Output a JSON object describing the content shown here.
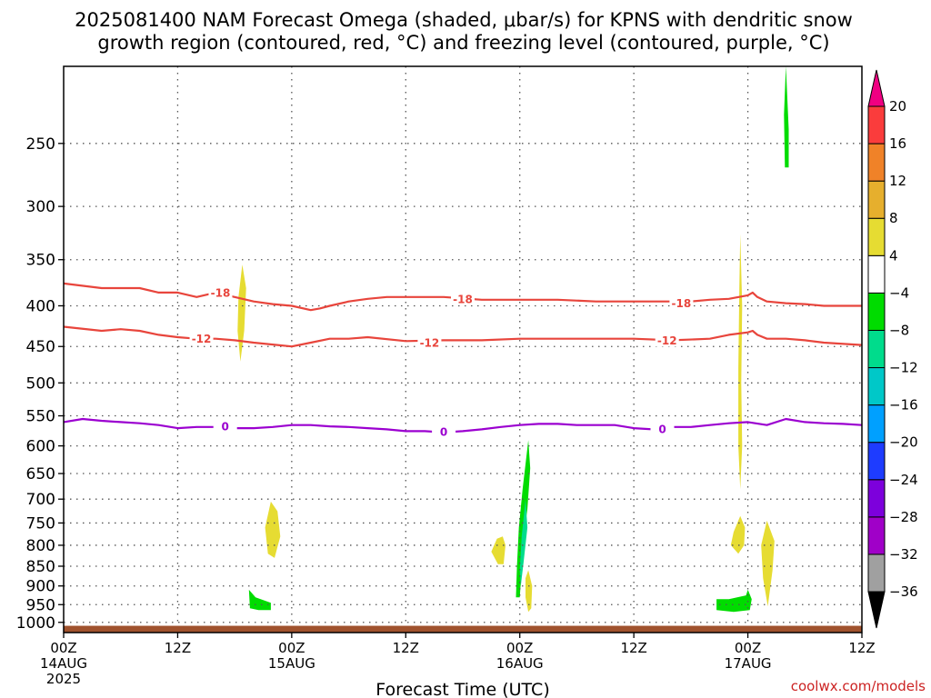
{
  "chart_data": {
    "type": "heatmap",
    "title_lines": [
      "2025081400 NAM Forecast Omega (shaded, μbar/s) for KPNS with dendritic snow",
      "growth region (contoured, red, °C) and freezing level (contoured, purple, °C)"
    ],
    "xlabel": "Forecast Time (UTC)",
    "xlim": [
      0,
      84
    ],
    "x_ticks": [
      {
        "x": 0,
        "lines": [
          "00Z",
          "14AUG",
          "2025"
        ]
      },
      {
        "x": 12,
        "lines": [
          "12Z"
        ]
      },
      {
        "x": 24,
        "lines": [
          "00Z",
          "15AUG"
        ]
      },
      {
        "x": 36,
        "lines": [
          "12Z"
        ]
      },
      {
        "x": 48,
        "lines": [
          "00Z",
          "16AUG"
        ]
      },
      {
        "x": 60,
        "lines": [
          "12Z"
        ]
      },
      {
        "x": 72,
        "lines": [
          "00Z",
          "17AUG"
        ]
      },
      {
        "x": 84,
        "lines": [
          "12Z"
        ]
      }
    ],
    "y_ticks": [
      250,
      300,
      350,
      400,
      450,
      500,
      550,
      600,
      650,
      700,
      750,
      800,
      850,
      900,
      950,
      1000
    ],
    "ylim": [
      1030,
      200
    ],
    "grid": true,
    "ground": {
      "pressure_top": 1010,
      "color": "#a0522d"
    },
    "colorbar": {
      "levels": [
        -36,
        -32,
        -28,
        -24,
        -20,
        -16,
        -12,
        -8,
        -4,
        4,
        8,
        12,
        16,
        20
      ],
      "colors": [
        "#000000",
        "#a0a0a0",
        "#a000c8",
        "#7d00dc",
        "#1e3cff",
        "#00a0ff",
        "#00c8c8",
        "#00dc8c",
        "#00dc00",
        "#ffffff",
        "#e6dc32",
        "#e6af2d",
        "#f08228",
        "#fa3c3c",
        "#f00082"
      ]
    },
    "contours": [
      {
        "name": "-18",
        "color": "#e8453c",
        "x": [
          0,
          4,
          8,
          10,
          12,
          14,
          16,
          18,
          20,
          22,
          24,
          26,
          27,
          28,
          30,
          32,
          34,
          36,
          40,
          44,
          48,
          52,
          56,
          60,
          64,
          66,
          68,
          70,
          72,
          72.5,
          73,
          74,
          76,
          78,
          80,
          84
        ],
        "y": [
          375,
          380,
          380,
          385,
          385,
          390,
          385,
          390,
          395,
          398,
          400,
          405,
          403,
          400,
          395,
          392,
          390,
          390,
          390,
          393,
          393,
          393,
          395,
          395,
          395,
          395,
          393,
          392,
          388,
          385,
          390,
          395,
          397,
          398,
          400,
          400
        ],
        "labels": [
          {
            "x": 16.5,
            "y": 385
          },
          {
            "x": 42,
            "y": 392
          },
          {
            "x": 65,
            "y": 397
          }
        ]
      },
      {
        "name": "-12",
        "color": "#e8453c",
        "x": [
          0,
          4,
          6,
          8,
          10,
          12,
          14,
          16,
          18,
          20,
          24,
          26,
          28,
          30,
          32,
          36,
          40,
          44,
          48,
          52,
          56,
          60,
          64,
          68,
          70,
          72,
          72.5,
          73,
          74,
          76,
          78,
          80,
          84
        ],
        "y": [
          425,
          430,
          428,
          430,
          435,
          438,
          440,
          440,
          442,
          445,
          450,
          445,
          440,
          440,
          438,
          443,
          442,
          442,
          440,
          440,
          440,
          440,
          442,
          440,
          435,
          432,
          430,
          435,
          440,
          440,
          442,
          445,
          448
        ],
        "labels": [
          {
            "x": 14.5,
            "y": 440
          },
          {
            "x": 38.5,
            "y": 445
          },
          {
            "x": 63.5,
            "y": 442
          }
        ]
      },
      {
        "name": "0",
        "color": "#9b00d0",
        "x": [
          0,
          2,
          4,
          6,
          8,
          10,
          12,
          14,
          16,
          18,
          20,
          22,
          24,
          26,
          28,
          30,
          32,
          34,
          36,
          38,
          40,
          42,
          44,
          46,
          48,
          50,
          52,
          54,
          56,
          58,
          60,
          62,
          64,
          66,
          68,
          70,
          72,
          74,
          76,
          78,
          80,
          82,
          84
        ],
        "y": [
          560,
          555,
          558,
          560,
          562,
          565,
          570,
          568,
          568,
          570,
          570,
          568,
          565,
          565,
          567,
          568,
          570,
          572,
          575,
          575,
          577,
          575,
          572,
          568,
          565,
          563,
          563,
          565,
          565,
          565,
          570,
          572,
          568,
          568,
          565,
          562,
          560,
          565,
          555,
          560,
          562,
          563,
          565
        ],
        "labels": [
          {
            "x": 17,
            "y": 567
          },
          {
            "x": 40,
            "y": 576
          },
          {
            "x": 63,
            "y": 571
          }
        ]
      }
    ],
    "shaded_regions": [
      {
        "level": 4,
        "color": "#e6dc32",
        "points": [
          [
            18.8,
            355
          ],
          [
            19.2,
            380
          ],
          [
            19.0,
            430
          ],
          [
            18.6,
            470
          ],
          [
            18.3,
            430
          ],
          [
            18.4,
            390
          ]
        ]
      },
      {
        "level": 4,
        "color": "#e6dc32",
        "points": [
          [
            21.8,
            705
          ],
          [
            22.5,
            725
          ],
          [
            22.8,
            780
          ],
          [
            22.2,
            830
          ],
          [
            21.5,
            820
          ],
          [
            21.2,
            760
          ]
        ]
      },
      {
        "level": -4,
        "color": "#00dc00",
        "points": [
          [
            19.5,
            910
          ],
          [
            20.2,
            930
          ],
          [
            21.8,
            945
          ],
          [
            21.8,
            965
          ],
          [
            20.5,
            965
          ],
          [
            19.6,
            960
          ]
        ]
      },
      {
        "level": 4,
        "color": "#e6dc32",
        "points": [
          [
            45.6,
            785
          ],
          [
            46.2,
            780
          ],
          [
            46.5,
            800
          ],
          [
            46.3,
            845
          ],
          [
            45.7,
            845
          ],
          [
            45.0,
            815
          ]
        ]
      },
      {
        "level": -4,
        "color": "#00dc00",
        "points": [
          [
            48.9,
            590
          ],
          [
            49.1,
            640
          ],
          [
            48.8,
            720
          ],
          [
            48.3,
            800
          ],
          [
            48.1,
            890
          ],
          [
            48.0,
            930
          ],
          [
            47.6,
            930
          ],
          [
            47.7,
            850
          ],
          [
            47.9,
            760
          ],
          [
            48.3,
            680
          ]
        ]
      },
      {
        "level": -8,
        "color": "#00dc8c",
        "points": [
          [
            48.6,
            700
          ],
          [
            48.8,
            760
          ],
          [
            48.4,
            840
          ],
          [
            48.1,
            900
          ],
          [
            48.0,
            860
          ],
          [
            48.2,
            780
          ]
        ]
      },
      {
        "level": 4,
        "color": "#e6dc32",
        "points": [
          [
            48.9,
            860
          ],
          [
            49.3,
            900
          ],
          [
            49.2,
            960
          ],
          [
            48.9,
            970
          ],
          [
            48.6,
            930
          ],
          [
            48.6,
            880
          ]
        ]
      },
      {
        "level": 4,
        "color": "#e6dc32",
        "points": [
          [
            71.2,
            325
          ],
          [
            71.4,
            400
          ],
          [
            71.3,
            500
          ],
          [
            71.4,
            600
          ],
          [
            71.2,
            680
          ],
          [
            71.0,
            600
          ],
          [
            71.0,
            480
          ],
          [
            71.1,
            380
          ]
        ]
      },
      {
        "level": 4,
        "color": "#e6dc32",
        "points": [
          [
            71.2,
            735
          ],
          [
            71.7,
            760
          ],
          [
            71.6,
            800
          ],
          [
            71.0,
            820
          ],
          [
            70.2,
            800
          ],
          [
            70.5,
            770
          ]
        ]
      },
      {
        "level": 4,
        "color": "#e6dc32",
        "points": [
          [
            74.0,
            745
          ],
          [
            74.8,
            790
          ],
          [
            74.6,
            860
          ],
          [
            74.1,
            955
          ],
          [
            73.6,
            880
          ],
          [
            73.4,
            800
          ]
        ]
      },
      {
        "level": -4,
        "color": "#00dc00",
        "points": [
          [
            68.7,
            935
          ],
          [
            70.0,
            935
          ],
          [
            71.8,
            925
          ],
          [
            72.0,
            910
          ],
          [
            72.4,
            935
          ],
          [
            72.2,
            965
          ],
          [
            70.5,
            970
          ],
          [
            68.7,
            965
          ]
        ]
      },
      {
        "level": -4,
        "color": "#00dc00",
        "points": [
          [
            76.0,
            200
          ],
          [
            76.3,
            240
          ],
          [
            76.3,
            268
          ],
          [
            75.9,
            268
          ],
          [
            75.8,
            230
          ]
        ]
      }
    ]
  },
  "credit": "coolwx.com/models"
}
